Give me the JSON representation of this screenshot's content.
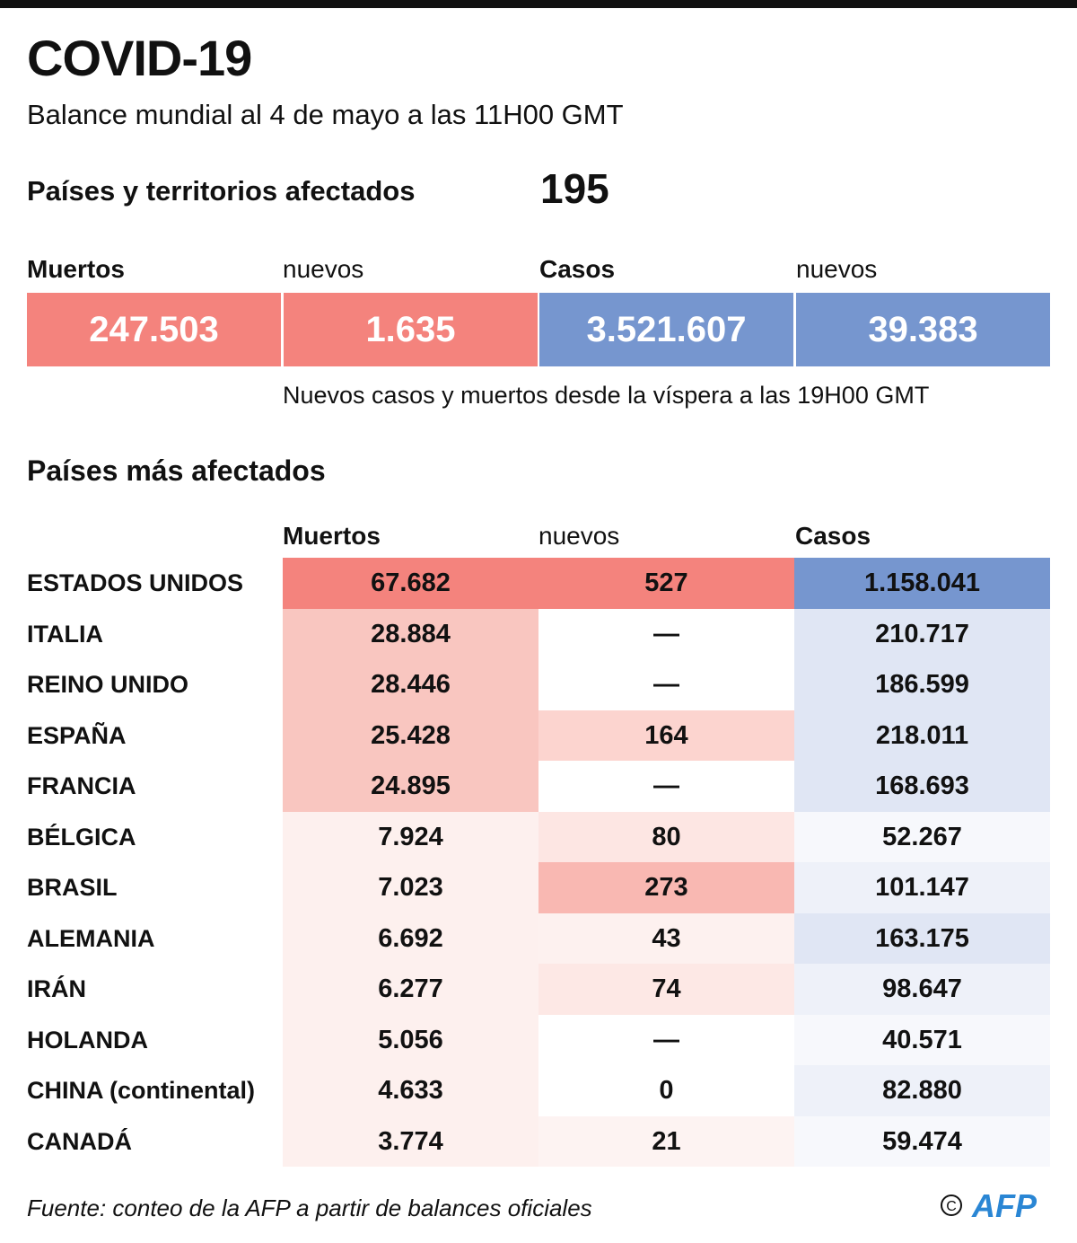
{
  "header": {
    "title": "COVID-19",
    "subtitle": "Balance mundial al 4 de mayo a las 11H00 GMT"
  },
  "affected": {
    "label": "Países y territorios afectados",
    "value": "195"
  },
  "summary": {
    "deaths_label": "Muertos",
    "deaths_new_label": "nuevos",
    "cases_label": "Casos",
    "cases_new_label": "nuevos",
    "deaths": "247.503",
    "deaths_new": "1.635",
    "cases": "3.521.607",
    "cases_new": "39.383",
    "note": "Nuevos casos y muertos desde la víspera a las 19H00 GMT"
  },
  "colors": {
    "deaths": "#f4837d",
    "cases": "#7696cf"
  },
  "chart_data": {
    "type": "table",
    "title": "Países más afectados",
    "columns": [
      "Muertos",
      "nuevos",
      "Casos"
    ],
    "rows": [
      {
        "country": "ESTADOS UNIDOS",
        "deaths": "67.682",
        "new": "527",
        "cases": "1.158.041",
        "shade": [
          "#f4837d",
          "#f4837d",
          "#7696cf"
        ]
      },
      {
        "country": "ITALIA",
        "deaths": "28.884",
        "new": "—",
        "cases": "210.717",
        "shade": [
          "#f9c6c0",
          "#ffffff",
          "#e0e6f4"
        ]
      },
      {
        "country": "REINO UNIDO",
        "deaths": "28.446",
        "new": "—",
        "cases": "186.599",
        "shade": [
          "#f9c6c0",
          "#ffffff",
          "#e0e6f4"
        ]
      },
      {
        "country": "ESPAÑA",
        "deaths": "25.428",
        "new": "164",
        "cases": "218.011",
        "shade": [
          "#f9c6c0",
          "#fcd4cf",
          "#e0e6f4"
        ]
      },
      {
        "country": "FRANCIA",
        "deaths": "24.895",
        "new": "—",
        "cases": "168.693",
        "shade": [
          "#f9c6c0",
          "#ffffff",
          "#e0e6f4"
        ]
      },
      {
        "country": "BÉLGICA",
        "deaths": "7.924",
        "new": "80",
        "cases": "52.267",
        "shade": [
          "#fdf0ee",
          "#fde6e3",
          "#f7f8fc"
        ]
      },
      {
        "country": "BRASIL",
        "deaths": "7.023",
        "new": "273",
        "cases": "101.147",
        "shade": [
          "#fdf0ee",
          "#f9b8b2",
          "#eef1f9"
        ]
      },
      {
        "country": "ALEMANIA",
        "deaths": "6.692",
        "new": "43",
        "cases": "163.175",
        "shade": [
          "#fdf0ee",
          "#fdf1ef",
          "#e0e6f4"
        ]
      },
      {
        "country": "IRÁN",
        "deaths": "6.277",
        "new": "74",
        "cases": "98.647",
        "shade": [
          "#fdf0ee",
          "#fde8e5",
          "#eef1f9"
        ]
      },
      {
        "country": "HOLANDA",
        "deaths": "5.056",
        "new": "—",
        "cases": "40.571",
        "shade": [
          "#fdf0ee",
          "#ffffff",
          "#f7f8fc"
        ]
      },
      {
        "country": "CHINA (continental)",
        "deaths": "4.633",
        "new": "0",
        "cases": "82.880",
        "shade": [
          "#fdf0ee",
          "#ffffff",
          "#eef1f9"
        ]
      },
      {
        "country": "CANADÁ",
        "deaths": "3.774",
        "new": "21",
        "cases": "59.474",
        "shade": [
          "#fdf0ee",
          "#fdf3f2",
          "#f7f8fc"
        ]
      }
    ]
  },
  "footer": {
    "source": "Fuente: conteo de la AFP a partir de balances oficiales",
    "logo": "© AFP"
  }
}
